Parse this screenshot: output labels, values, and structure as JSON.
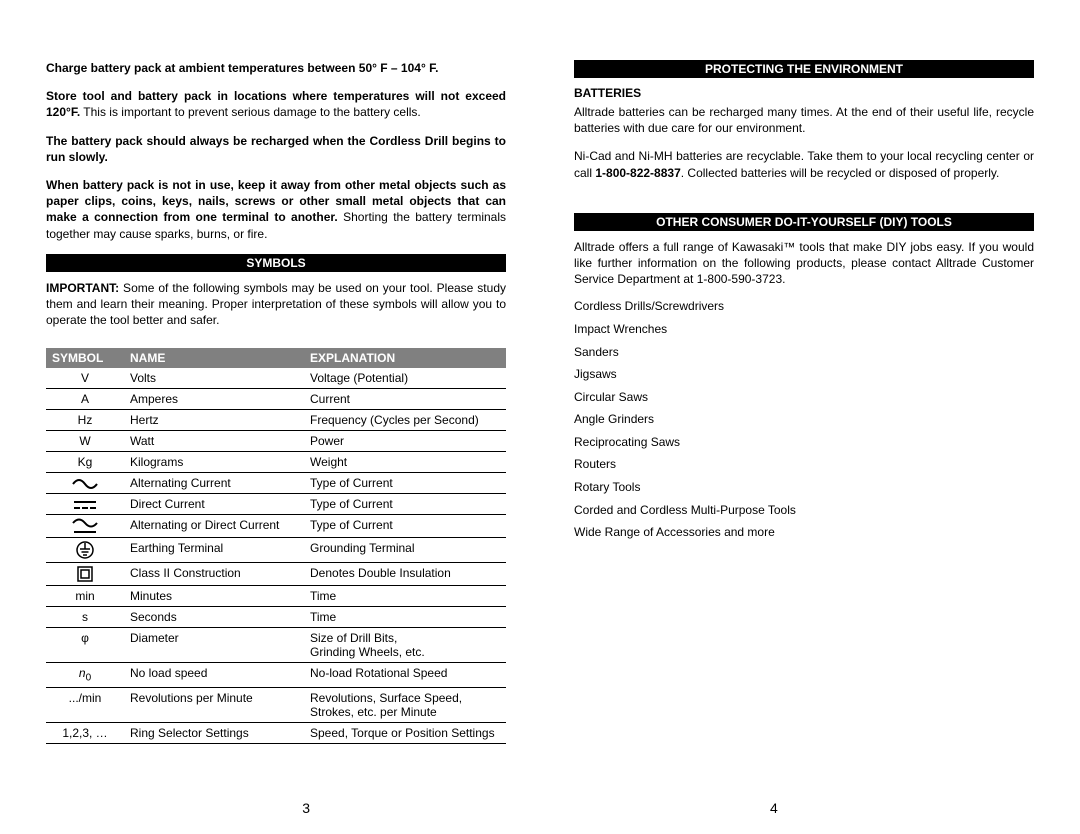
{
  "left": {
    "bullets": [
      {
        "bold": "Charge battery pack at ambient temperatures between 50° F – 104° F.",
        "rest": ""
      },
      {
        "bold": "Store tool and battery pack in locations where temperatures will not exceed 120°F.",
        "rest": " This is important to prevent serious damage to the battery cells."
      },
      {
        "bold": "The battery pack should always be recharged when the Cordless Drill begins to run slowly.",
        "rest": ""
      },
      {
        "bold": "When battery pack is not in use, keep it away from other metal objects such as paper clips, coins, keys, nails, screws or other small metal objects that can make a connection from one terminal to another.",
        "rest": " Shorting the battery terminals together may cause sparks, burns, or fire."
      }
    ],
    "symbols_header": "SYMBOLS",
    "symbols_intro_bold": "IMPORTANT:",
    "symbols_intro_rest": " Some of the following symbols may be used on your tool. Please study them and learn their meaning. Proper interpretation of these symbols will allow you to operate the tool better and safer.",
    "table": {
      "headers": [
        "SYMBOL",
        "NAME",
        "EXPLANATION"
      ],
      "rows": [
        [
          "V",
          "Volts",
          "Voltage (Potential)"
        ],
        [
          "A",
          "Amperes",
          "Current"
        ],
        [
          "Hz",
          "Hertz",
          "Frequency (Cycles per Second)"
        ],
        [
          "W",
          "Watt",
          "Power"
        ],
        [
          "Kg",
          "Kilograms",
          "Weight"
        ],
        [
          "~ac",
          "Alternating Current",
          "Type of Current"
        ],
        [
          "~dc",
          "Direct Current",
          "Type of Current"
        ],
        [
          "~acdc",
          "Alternating or Direct Current",
          "Type of Current"
        ],
        [
          "~earth",
          "Earthing Terminal",
          "Grounding Terminal"
        ],
        [
          "~class2",
          "Class II Construction",
          "Denotes Double Insulation"
        ],
        [
          "min",
          "Minutes",
          "Time"
        ],
        [
          "s",
          "Seconds",
          "Time"
        ],
        [
          "φ",
          "Diameter",
          "Size of Drill Bits,\nGrinding Wheels, etc."
        ],
        [
          "~n0",
          "No load speed",
          "No-load Rotational Speed"
        ],
        [
          ".../min",
          "Revolutions per Minute",
          "Revolutions, Surface Speed,\nStrokes, etc. per Minute"
        ],
        [
          "1,2,3, …",
          "Ring Selector Settings",
          "Speed, Torque or Position Settings"
        ]
      ]
    },
    "page": "3"
  },
  "right": {
    "env_header": "PROTECTING THE ENVIRONMENT",
    "env_sub": "BATTERIES",
    "env_p1": "Alltrade batteries can be recharged many times. At the end of their useful life, recycle batteries with due care for our environment.",
    "env_p2a": "Ni-Cad and Ni-MH batteries are recyclable. Take them to your local recycling center or call ",
    "env_p2_bold": "1-800-822-8837",
    "env_p2b": ". Collected batteries will be recycled or disposed of properly.",
    "diy_header": "OTHER CONSUMER DO-IT-YOURSELF (DIY) TOOLS",
    "diy_intro": "Alltrade offers a full range of Kawasaki™ tools that make DIY jobs easy. If you would like further information on the following products, please contact Alltrade Customer Service Department at 1-800-590-3723.",
    "products": [
      "Cordless Drills/Screwdrivers",
      "Impact Wrenches",
      "Sanders",
      "Jigsaws",
      "Circular Saws",
      "Angle Grinders",
      "Reciprocating Saws",
      "Routers",
      "Rotary Tools",
      "Corded and Cordless Multi-Purpose Tools",
      "Wide Range of Accessories and more"
    ],
    "page": "4"
  }
}
